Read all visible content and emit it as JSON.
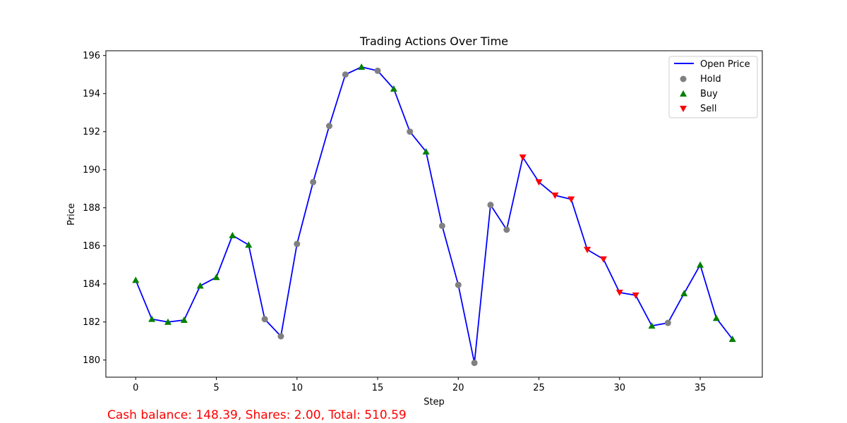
{
  "chart_data": {
    "type": "line",
    "title": "Trading Actions Over Time",
    "xlabel": "Step",
    "ylabel": "Price",
    "xlim": [
      -1.85,
      38.85
    ],
    "ylim": [
      179.1,
      196.25
    ],
    "x_ticks": [
      0,
      5,
      10,
      15,
      20,
      25,
      30,
      35
    ],
    "y_ticks": [
      180,
      182,
      184,
      186,
      188,
      190,
      192,
      194,
      196
    ],
    "grid": false,
    "legend_position": "top-right",
    "x": [
      0,
      1,
      2,
      3,
      4,
      5,
      6,
      7,
      8,
      9,
      10,
      11,
      12,
      13,
      14,
      15,
      16,
      17,
      18,
      19,
      20,
      21,
      22,
      23,
      24,
      25,
      26,
      27,
      28,
      29,
      30,
      31,
      32,
      33,
      34,
      35,
      36,
      37
    ],
    "series": [
      {
        "name": "Open Price",
        "color": "#0000ff",
        "values": [
          184.2,
          182.15,
          182.0,
          182.1,
          183.9,
          184.35,
          186.55,
          186.05,
          182.15,
          181.25,
          186.1,
          189.35,
          192.3,
          195.0,
          195.4,
          195.2,
          194.25,
          192.0,
          190.95,
          187.05,
          183.95,
          179.85,
          188.15,
          186.85,
          190.65,
          189.35,
          188.65,
          188.45,
          185.8,
          185.3,
          183.55,
          183.4,
          181.8,
          181.95,
          183.5,
          185.0,
          182.2,
          181.1
        ]
      }
    ],
    "actions": [
      "Buy",
      "Buy",
      "Buy",
      "Buy",
      "Buy",
      "Buy",
      "Buy",
      "Buy",
      "Hold",
      "Hold",
      "Hold",
      "Hold",
      "Hold",
      "Hold",
      "Buy",
      "Hold",
      "Buy",
      "Hold",
      "Buy",
      "Hold",
      "Hold",
      "Hold",
      "Hold",
      "Hold",
      "Sell",
      "Sell",
      "Sell",
      "Sell",
      "Sell",
      "Sell",
      "Sell",
      "Sell",
      "Buy",
      "Hold",
      "Buy",
      "Buy",
      "Buy",
      "Buy"
    ],
    "marker_legend": [
      {
        "name": "Hold",
        "color": "#808080",
        "marker": "circle"
      },
      {
        "name": "Buy",
        "color": "#008000",
        "marker": "triangle-up"
      },
      {
        "name": "Sell",
        "color": "#ff0000",
        "marker": "triangle-down"
      }
    ],
    "footer_text": "Cash balance: 148.39, Shares: 2.00, Total: 510.59",
    "footer_color": "#ff0000"
  }
}
